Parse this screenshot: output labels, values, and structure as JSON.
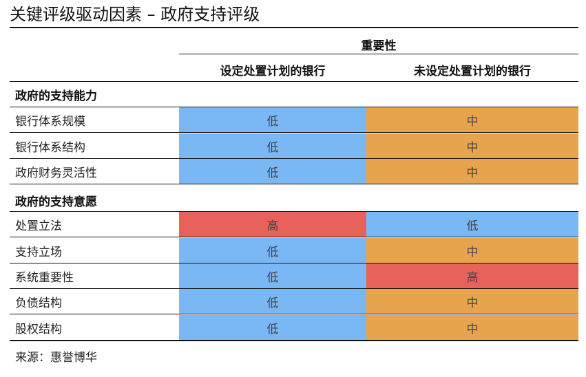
{
  "title": "关键评级驱动因素 – 政府支持评级",
  "header": {
    "group_label": "重要性",
    "col1": "设定处置计划的银行",
    "col2": "未设定处置计划的银行"
  },
  "colors": {
    "低": "#7ab8f5",
    "中": "#e8a44c",
    "高": "#e8615a"
  },
  "sections": [
    {
      "label": "政府的支持能力",
      "rows": [
        {
          "label": "银行体系规模",
          "v1": "低",
          "v2": "中"
        },
        {
          "label": "银行体系结构",
          "v1": "低",
          "v2": "中"
        },
        {
          "label": "政府财务灵活性",
          "v1": "低",
          "v2": "中"
        }
      ]
    },
    {
      "label": "政府的支持意愿",
      "rows": [
        {
          "label": "处置立法",
          "v1": "高",
          "v2": "低"
        },
        {
          "label": "支持立场",
          "v1": "低",
          "v2": "中"
        },
        {
          "label": "系统重要性",
          "v1": "低",
          "v2": "高"
        },
        {
          "label": "负债结构",
          "v1": "低",
          "v2": "中"
        },
        {
          "label": "股权结构",
          "v1": "低",
          "v2": "中"
        }
      ]
    }
  ],
  "source": "来源：惠誉博华"
}
